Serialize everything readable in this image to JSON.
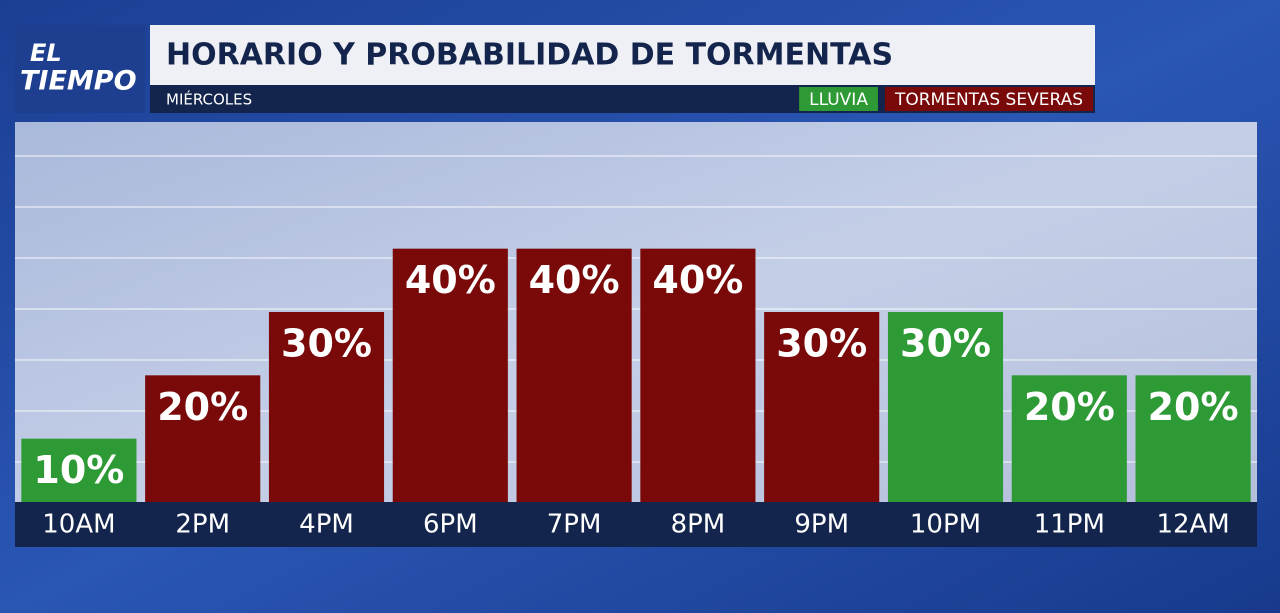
{
  "chart_data": {
    "type": "bar",
    "brand": [
      "EL",
      "TIEMPO"
    ],
    "title": "HORARIO Y PROBABILIDAD DE TORMENTAS",
    "subtitle": "MIÉRCOLES",
    "categories": [
      "10AM",
      "2PM",
      "4PM",
      "6PM",
      "7PM",
      "8PM",
      "9PM",
      "10PM",
      "11PM",
      "12AM"
    ],
    "series": [
      {
        "name": "LLUVIA",
        "color": "#2e9a35",
        "values": [
          10,
          null,
          null,
          null,
          null,
          null,
          null,
          30,
          20,
          20
        ],
        "value_labels": [
          "10%",
          null,
          null,
          null,
          null,
          null,
          null,
          "30%",
          "20%",
          "20%"
        ]
      },
      {
        "name": "TORMENTAS SEVERAS",
        "color": "#7a0a0a",
        "values": [
          null,
          20,
          30,
          40,
          40,
          40,
          30,
          null,
          null,
          null
        ],
        "value_labels": [
          null,
          "20%",
          "30%",
          "40%",
          "40%",
          "40%",
          "30%",
          null,
          null,
          null
        ]
      }
    ],
    "ylim": [
      0,
      60
    ]
  }
}
